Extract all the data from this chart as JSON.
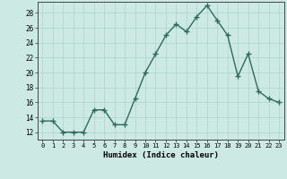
{
  "x": [
    0,
    1,
    2,
    3,
    4,
    5,
    6,
    7,
    8,
    9,
    10,
    11,
    12,
    13,
    14,
    15,
    16,
    17,
    18,
    19,
    20,
    21,
    22,
    23
  ],
  "y": [
    13.5,
    13.5,
    12,
    12,
    12,
    15,
    15,
    13,
    13,
    16.5,
    20,
    22.5,
    25,
    26.5,
    25.5,
    27.5,
    29,
    27,
    25,
    19.5,
    22.5,
    17.5,
    16.5,
    16
  ],
  "line_color": "#2e6b5e",
  "marker": "+",
  "marker_size": 4,
  "bg_color": "#cce9e4",
  "grid_color": "#aad4cc",
  "xlabel": "Humidex (Indice chaleur)",
  "xlim": [
    -0.5,
    23.5
  ],
  "ylim": [
    11,
    29.5
  ],
  "yticks": [
    12,
    14,
    16,
    18,
    20,
    22,
    24,
    26,
    28
  ],
  "xticks": [
    0,
    1,
    2,
    3,
    4,
    5,
    6,
    7,
    8,
    9,
    10,
    11,
    12,
    13,
    14,
    15,
    16,
    17,
    18,
    19,
    20,
    21,
    22,
    23
  ],
  "xtick_labels": [
    "0",
    "1",
    "2",
    "3",
    "4",
    "5",
    "6",
    "7",
    "8",
    "9",
    "10",
    "11",
    "12",
    "13",
    "14",
    "15",
    "16",
    "17",
    "18",
    "19",
    "20",
    "21",
    "22",
    "23"
  ],
  "linewidth": 1.0,
  "markeredgewidth": 1.0
}
